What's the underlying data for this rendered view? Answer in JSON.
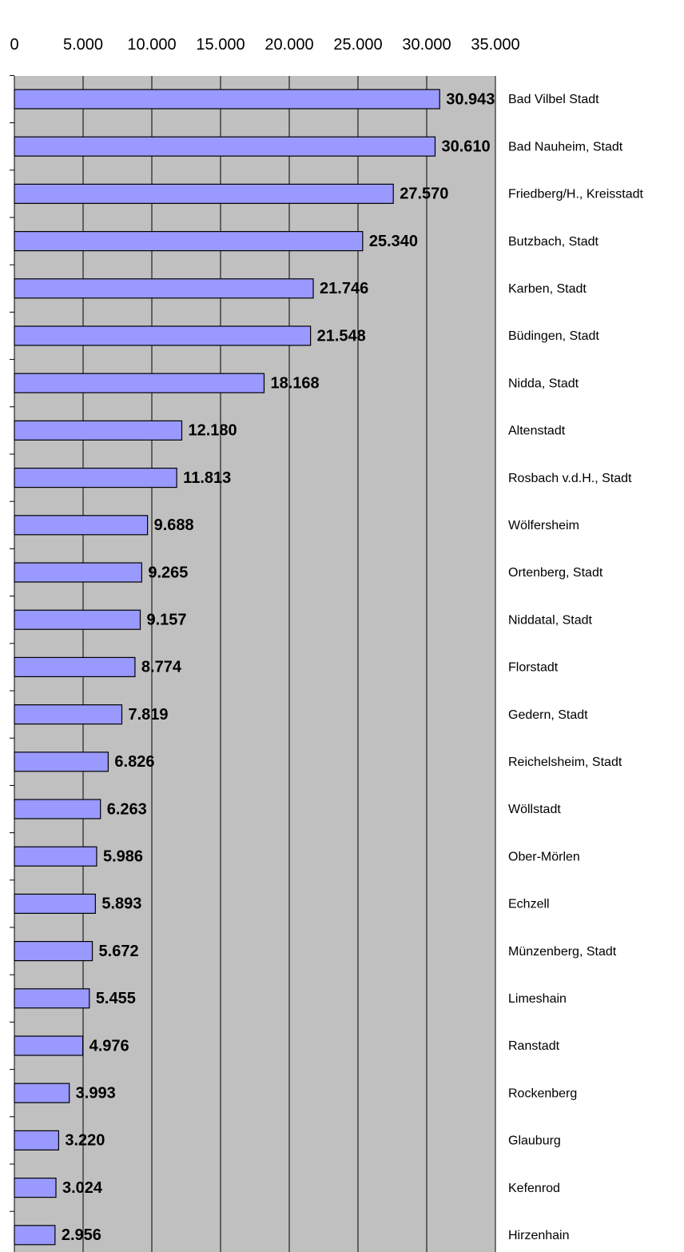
{
  "chart_data": {
    "type": "bar",
    "orientation": "horizontal",
    "categories": [
      "Bad Vilbel Stadt",
      "Bad Nauheim, Stadt",
      "Friedberg/H., Kreisstadt",
      "Butzbach, Stadt",
      "Karben, Stadt",
      "Büdingen, Stadt",
      "Nidda, Stadt",
      "Altenstadt",
      "Rosbach v.d.H., Stadt",
      "Wölfersheim",
      "Ortenberg, Stadt",
      "Niddatal, Stadt",
      "Florstadt",
      "Gedern, Stadt",
      "Reichelsheim, Stadt",
      "Wöllstadt",
      "Ober-Mörlen",
      "Echzell",
      "Münzenberg, Stadt",
      "Limeshain",
      "Ranstadt",
      "Rockenberg",
      "Glauburg",
      "Kefenrod",
      "Hirzenhain"
    ],
    "values": [
      30943,
      30610,
      27570,
      25340,
      21746,
      21548,
      18168,
      12180,
      11813,
      9688,
      9265,
      9157,
      8774,
      7819,
      6826,
      6263,
      5986,
      5893,
      5672,
      5455,
      4976,
      3993,
      3220,
      3024,
      2956
    ],
    "value_labels": [
      "30.943",
      "30.610",
      "27.570",
      "25.340",
      "21.746",
      "21.548",
      "18.168",
      "12.180",
      "11.813",
      "9.688",
      "9.265",
      "9.157",
      "8.774",
      "7.819",
      "6.826",
      "6.263",
      "5.986",
      "5.893",
      "5.672",
      "5.455",
      "4.976",
      "3.993",
      "3.220",
      "3.024",
      "2.956"
    ],
    "color": "#9999ff",
    "xlim": [
      0,
      35000
    ],
    "xticks": [
      0,
      {
        "value": 5000,
        "label": "5.000"
      },
      {
        "value": 10000,
        "label": "10.000"
      },
      {
        "value": 15000,
        "label": "15.000"
      },
      {
        "value": 20000,
        "label": "20.000"
      },
      {
        "value": 25000,
        "label": "25.000"
      },
      {
        "value": 30000,
        "label": "30.000"
      },
      {
        "value": 35000,
        "label": "35.000"
      }
    ],
    "grid": true
  }
}
